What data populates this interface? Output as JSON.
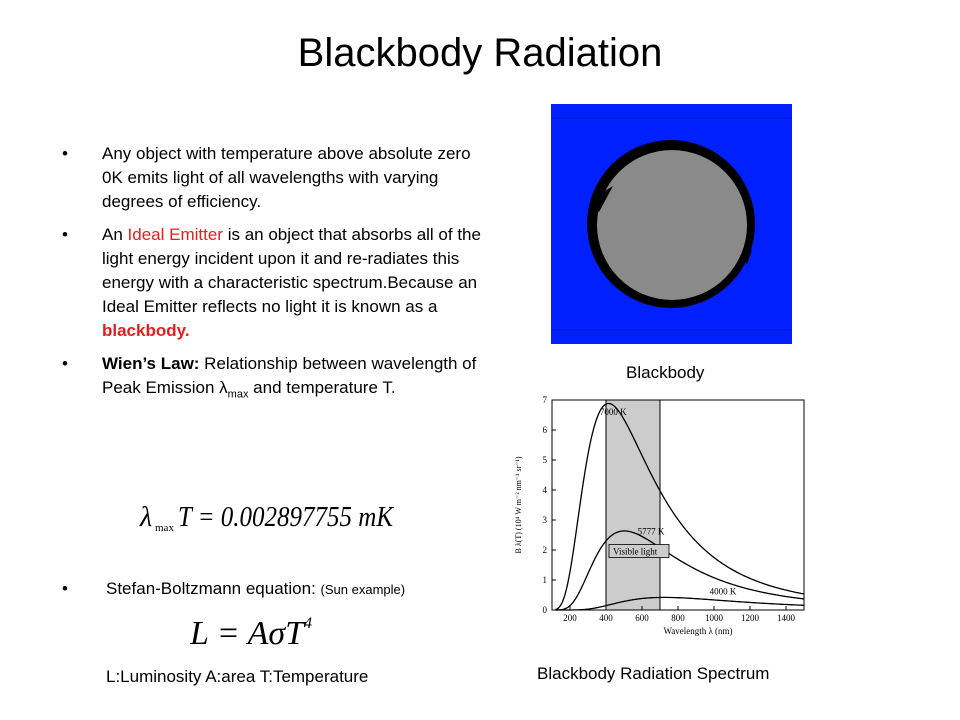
{
  "slide": {
    "title": "Blackbody Radiation"
  },
  "bullets": {
    "bullet_char": "•",
    "item1": "Any object with  temperature above absolute zero 0K emits light of all wavelengths with varying degrees of efficiency.",
    "item2": {
      "part1": "An ",
      "highlight1": "Ideal Emitter",
      "part2": " is an object that absorbs all of the light energy incident upon it and re-radiates this energy with a characteristic spectrum.Because an Ideal Emitter reflects no light it is known as a ",
      "highlight2": "blackbody."
    },
    "item3": {
      "bold": "Wien’s Law:",
      "text1": " Relationship between wavelength of Peak Emission ",
      "lambda": "λ",
      "sub": "max",
      "text2": "  and temperature T."
    },
    "item4": {
      "main": " Stefan-Boltzmann equation: ",
      "small": "(Sun example)"
    }
  },
  "formulas": {
    "wien": {
      "lambda": "λ",
      "sub": "max",
      "rest": "T = 0.002897755 mK"
    },
    "stefan": {
      "text": "L = AσT",
      "exp": "4"
    },
    "legend": "L:Luminosity A:area T:Temperature"
  },
  "images": {
    "blackbody_caption": "Blackbody",
    "spectrum_caption": "Blackbody Radiation Spectrum",
    "colors": {
      "background": "#0020ff",
      "disc": "#8a8a8a",
      "ring": "#000000",
      "visible_band": "#cccccc"
    }
  },
  "chart_data": {
    "type": "line",
    "xlabel": "Wavelength λ (nm)",
    "ylabel": "B λ(T) (10⁴ W m⁻² nm⁻¹ sr⁻¹)",
    "xlim": [
      100,
      1500
    ],
    "ylim": [
      0,
      7
    ],
    "x_ticks": [
      "200",
      "400",
      "600",
      "800",
      "1000",
      "1200",
      "1400"
    ],
    "y_ticks": [
      "0",
      "1",
      "2",
      "3",
      "4",
      "5",
      "6",
      "7"
    ],
    "band": {
      "label": "Visible light",
      "from": 400,
      "to": 700
    },
    "series": [
      {
        "name": "7000 K",
        "temperature": 7000
      },
      {
        "name": "5777 K",
        "temperature": 5777
      },
      {
        "name": "4000 K",
        "temperature": 4000
      }
    ]
  }
}
